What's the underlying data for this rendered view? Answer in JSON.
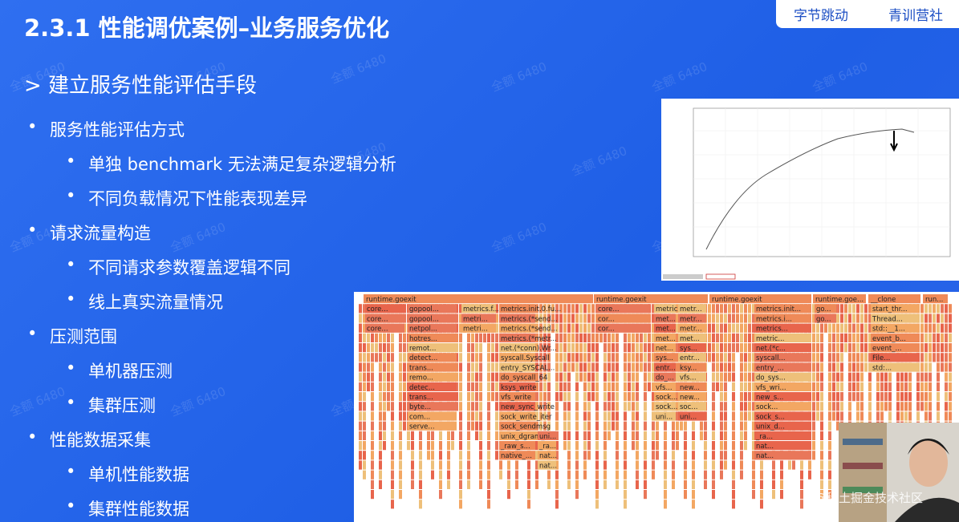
{
  "header": {
    "title": "2.3.1 性能调优案例–业务服务优化",
    "logo_left": "字节跳动",
    "logo_right": "青训营社"
  },
  "section": "> 建立服务性能评估手段",
  "bullets": [
    {
      "level": 1,
      "text": "服务性能评估方式"
    },
    {
      "level": 2,
      "text": "单独 benchmark 无法满足复杂逻辑分析"
    },
    {
      "level": 2,
      "text": "不同负载情况下性能表现差异"
    },
    {
      "level": 1,
      "text": "请求流量构造"
    },
    {
      "level": 2,
      "text": "不同请求参数覆盖逻辑不同"
    },
    {
      "level": 2,
      "text": "线上真实流量情况"
    },
    {
      "level": 1,
      "text": "压测范围"
    },
    {
      "level": 2,
      "text": "单机器压测"
    },
    {
      "level": 2,
      "text": "集群压测"
    },
    {
      "level": 1,
      "text": "性能数据采集"
    },
    {
      "level": 2,
      "text": "单机性能数据"
    },
    {
      "level": 2,
      "text": "集群性能数据"
    }
  ],
  "flame": {
    "roots": [
      "runtime.goexit",
      "runtime.goexit",
      "runtime.goexit",
      "runtime.goe...",
      "__clone",
      "run..."
    ],
    "columns": [
      [
        "core...",
        "core...",
        "core..."
      ],
      [
        "gopool...",
        "gopool...",
        "netpol...",
        "hotres...",
        "remot...",
        "detect...",
        "trans...",
        "remo...",
        "detec...",
        "trans...",
        "byte...",
        "com...",
        "serve..."
      ],
      [
        "metrics.f...",
        "metri...",
        "metri..."
      ],
      [
        "metrics.init.0.fu...",
        "metrics.(*send...",
        "metrics.(*send...",
        "metrics.(*metr...",
        "net.(*conn).Wr...",
        "syscall.Syscall",
        "entry_SYSCAL...",
        "do_syscall_64",
        "ksys_write",
        "vfs_write",
        "new_sync_write",
        "sock_write_iter",
        "sock_sendmsg",
        "unix_dgram_s...",
        "_raw_s...",
        "native_..."
      ],
      [
        "uni...",
        "_ra...",
        "nat...",
        "nat..."
      ],
      [
        "core...",
        "cor...",
        "cor..."
      ],
      [
        "metrics.i...",
        "met...",
        "met...",
        "met...",
        "net...",
        "sys...",
        "entr...",
        "do_...",
        "vfs...",
        "sock...",
        "sock...",
        "uni..."
      ],
      [
        "metr...",
        "metr...",
        "metr...",
        "met...",
        "sys...",
        "entr...",
        "ksy...",
        "vfs...",
        "new...",
        "new...",
        "soc...",
        "uni..."
      ],
      [
        "metrics.init...",
        "metrics.i...",
        "metrics...",
        "metric...",
        "net.(*c...",
        "syscall...",
        "entry_...",
        "do_sys...",
        "vfs_wri...",
        "new_s...",
        "sock...",
        "sock_s...",
        "unix_d...",
        "_ra...",
        "nat...",
        "nat..."
      ],
      [
        "go...",
        "go..."
      ],
      [
        "start_thr...",
        "Thread...",
        "std::__1...",
        "event_b...",
        "event_...",
        "File...",
        "std:..."
      ]
    ]
  },
  "watermark": "全额 6480",
  "credit": "@稀土掘金技术社区"
}
